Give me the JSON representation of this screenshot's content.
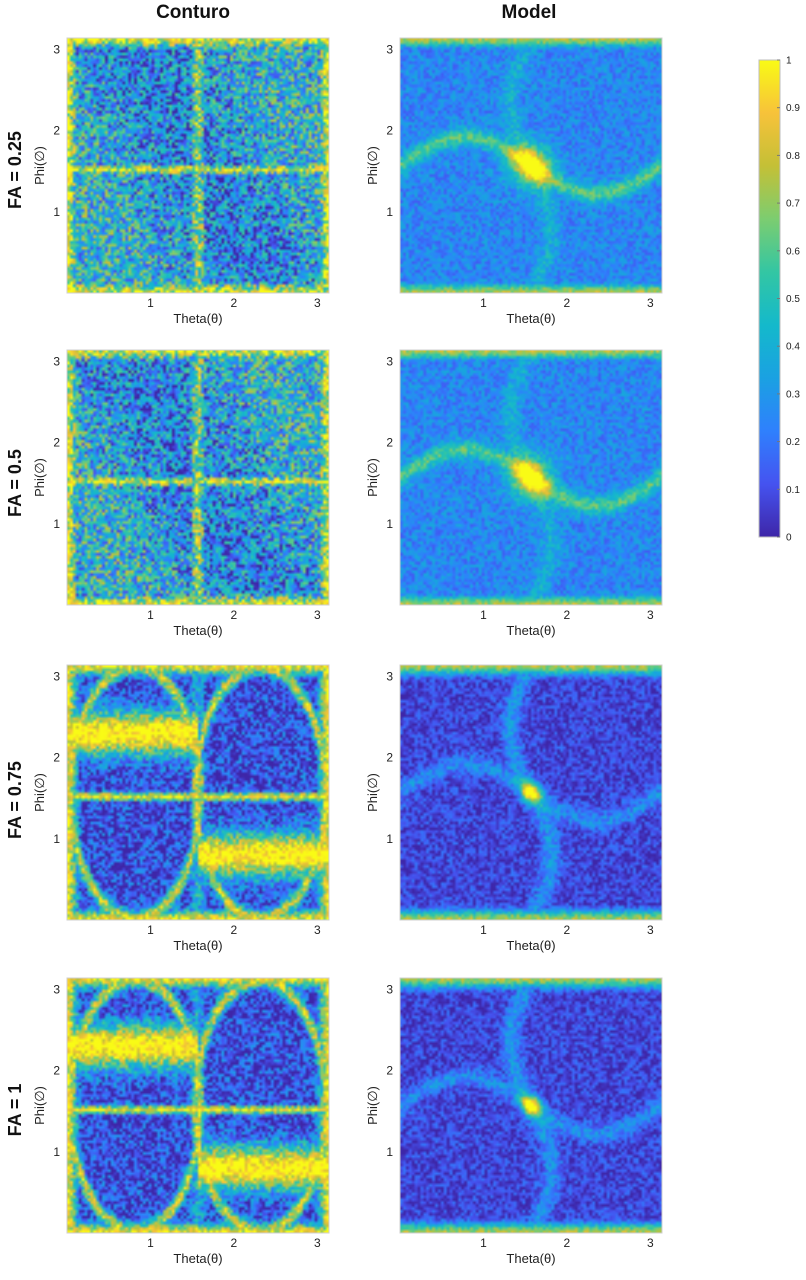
{
  "figure": {
    "column_titles": [
      "Conturo",
      "Model"
    ],
    "row_titles": [
      "FA = 0.25",
      "FA = 0.5",
      "FA = 0.75",
      "FA = 1"
    ]
  },
  "chart_data": {
    "type": "heatmap",
    "colormap": "parula",
    "color_range": [
      0,
      1
    ],
    "colorbar_ticks": [
      "0",
      "0.1",
      "0.2",
      "0.3",
      "0.4",
      "0.5",
      "0.6",
      "0.7",
      "0.8",
      "0.9",
      "1"
    ],
    "colormap_stops": [
      "#3e26a8",
      "#4553f0",
      "#2f80fd",
      "#1aa1e2",
      "#14b9cb",
      "#33c6a3",
      "#7ccd70",
      "#c4c036",
      "#f7c23a",
      "#f9fb15"
    ],
    "xlabel": "Theta(θ)",
    "ylabel": "Phi(∅)",
    "xlim": [
      0,
      3.14
    ],
    "ylim": [
      0,
      3.14
    ],
    "x_ticks": [
      "1",
      "2",
      "3"
    ],
    "y_ticks": [
      "1",
      "2",
      "3"
    ],
    "panels": [
      {
        "method": "Conturo",
        "fa": "FA = 0.25",
        "pattern": "conturo",
        "fa_value": 0.25
      },
      {
        "method": "Model",
        "fa": "FA = 0.25",
        "pattern": "model",
        "fa_value": 0.25
      },
      {
        "method": "Conturo",
        "fa": "FA = 0.5",
        "pattern": "conturo",
        "fa_value": 0.5
      },
      {
        "method": "Model",
        "fa": "FA = 0.5",
        "pattern": "model",
        "fa_value": 0.5
      },
      {
        "method": "Conturo",
        "fa": "FA = 0.75",
        "pattern": "conturo",
        "fa_value": 0.75
      },
      {
        "method": "Model",
        "fa": "FA = 0.75",
        "pattern": "model",
        "fa_value": 0.75
      },
      {
        "method": "Conturo",
        "fa": "FA = 1",
        "pattern": "conturo",
        "fa_value": 1
      },
      {
        "method": "Model",
        "fa": "FA = 1",
        "pattern": "model",
        "fa_value": 1
      }
    ]
  }
}
